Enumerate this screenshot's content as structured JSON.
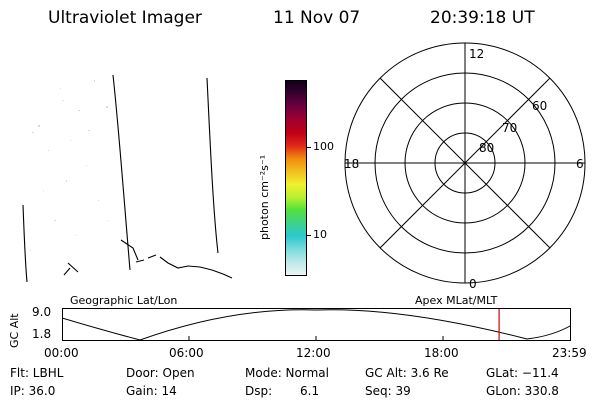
{
  "header": {
    "instrument": "Ultraviolet Imager",
    "date": "11 Nov 07",
    "time": "20:39:18 UT"
  },
  "colorbar": {
    "unit_label": "photon cm⁻²s⁻¹",
    "ticks": [
      "100",
      "10"
    ],
    "colors": [
      "#e8f4f4",
      "#bfe8e8",
      "#79dcdc",
      "#2ec8d0",
      "#3cd28a",
      "#50e040",
      "#b8f030",
      "#f0f030",
      "#f0c020",
      "#f08c10",
      "#e02818",
      "#c00018",
      "#a00030",
      "#700040",
      "#3a0030",
      "#100018"
    ]
  },
  "polar": {
    "mlt_labels": {
      "top": "12",
      "right": "6",
      "bottom": "0",
      "left": "18"
    },
    "lat_labels": [
      "60",
      "70",
      "80"
    ]
  },
  "timeline": {
    "left_label": "Geographic Lat/Lon",
    "right_label": "Apex MLat/MLT",
    "y_axis_label": "GC Alt",
    "y_max": "9.0",
    "y_min": "1.8",
    "x_ticks": [
      "00:00",
      "06:00",
      "12:00",
      "18:00",
      "23:59"
    ],
    "current_time_hours": 20.65
  },
  "info": {
    "filter": "Flt: LBHL",
    "ip": "IP: 36.0",
    "door": "Door: Open",
    "gain": "Gain: 14",
    "mode": "Mode: Normal",
    "dsp_label": "Dsp:",
    "dsp_value": "6.1",
    "gc_alt": "GC Alt: 3.6 Re",
    "seq": "Seq: 39",
    "glat": "GLat: −11.4",
    "glon": "GLon: 330.8"
  }
}
